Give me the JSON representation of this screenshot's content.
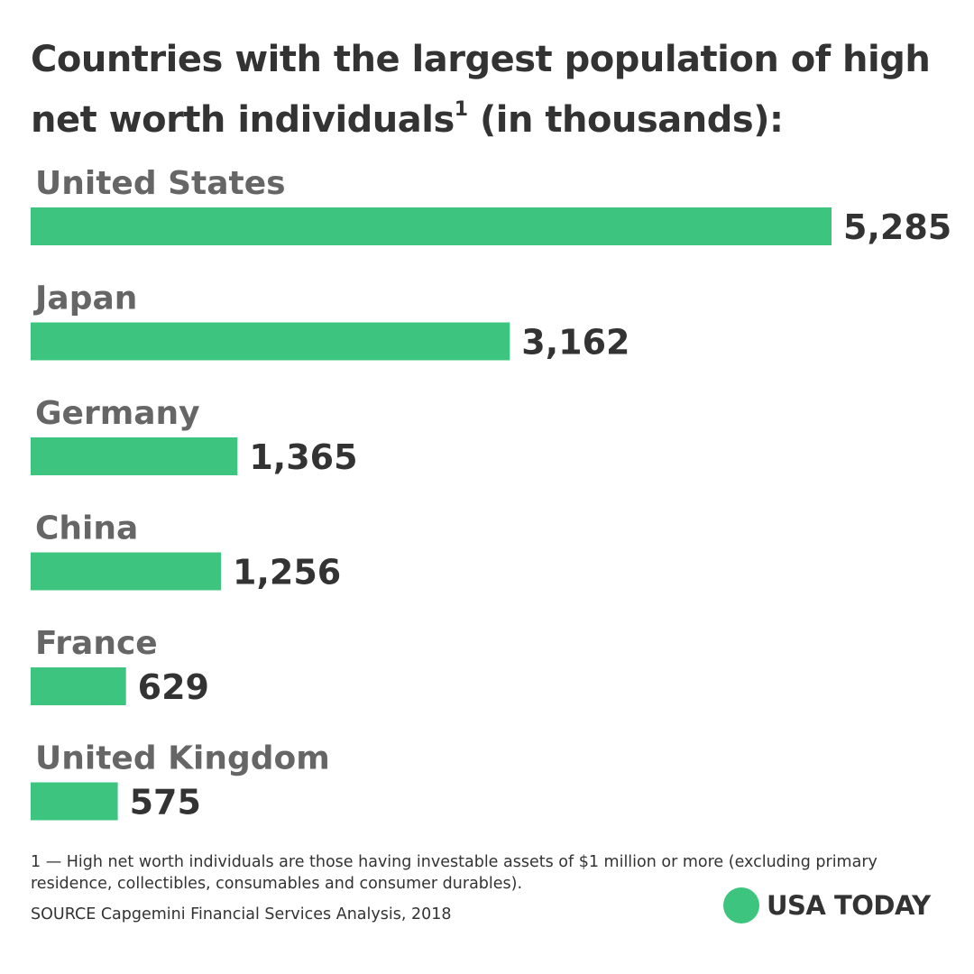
{
  "header": {
    "title_main": "Countries with the largest population of high net worth individuals",
    "title_sup": "1",
    "title_rest": " (in thousands):"
  },
  "chart_data": {
    "type": "bar",
    "orientation": "horizontal",
    "categories": [
      "United States",
      "Japan",
      "Germany",
      "China",
      "France",
      "United Kingdom"
    ],
    "values": [
      5285,
      3162,
      1365,
      1256,
      629,
      575
    ],
    "value_labels": [
      "5,285",
      "3,162",
      "1,365",
      "1,256",
      "629",
      "575"
    ],
    "bar_color": "#3dc47e",
    "xlim": [
      0,
      5285
    ],
    "grid": false,
    "legend": "none"
  },
  "footer": {
    "footnote": "1 — High net worth individuals are those having investable assets of $1 million or more (excluding primary residence, collectibles, consumables and consumer durables).",
    "source": "SOURCE Capgemini Financial Services Analysis, 2018"
  },
  "brand": {
    "name": "USA TODAY",
    "dot_color": "#3dc47e"
  }
}
